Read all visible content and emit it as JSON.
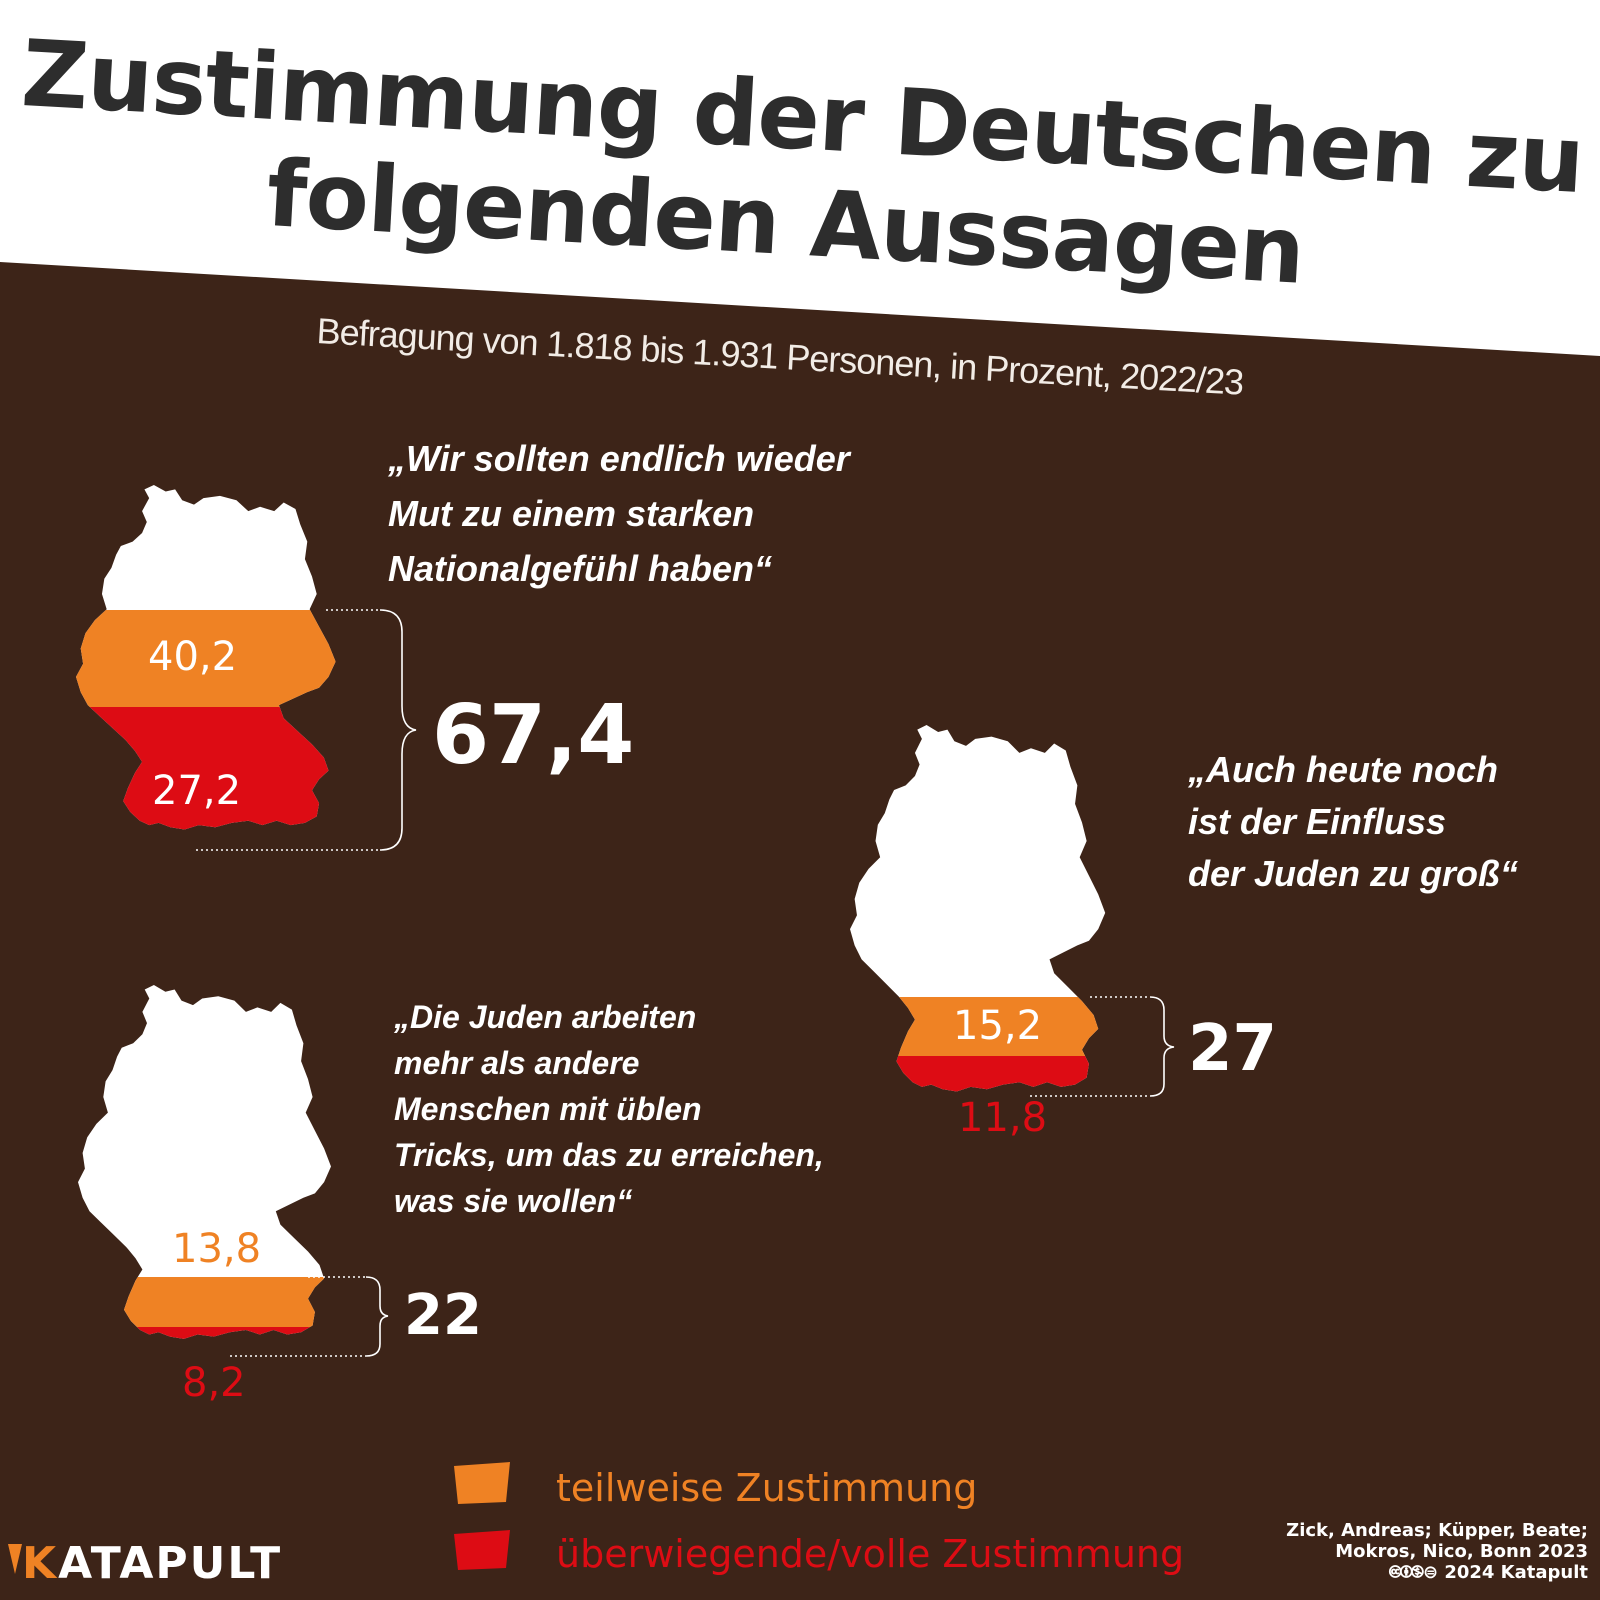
{
  "header": {
    "title_line1": "Zustimmung der Deutschen zu",
    "title_line2": "folgenden Aussagen",
    "subtitle": "Befragung von 1.818 bis 1.931 Personen, in Prozent, 2022/23"
  },
  "colors": {
    "background": "#3d2418",
    "partial": "#ef8224",
    "full": "#dd0c14",
    "map": "#ffffff",
    "title": "#2d2d2d"
  },
  "statements": [
    {
      "quote_lines": [
        "„Wir sollten endlich wieder",
        "Mut zu einem starken",
        "Nationalgefühl haben“"
      ],
      "partial_label": "40,2",
      "full_label": "27,2",
      "total_label": "67,4"
    },
    {
      "quote_lines": [
        "„Auch heute noch",
        "ist der Einfluss",
        "der Juden zu groß“"
      ],
      "partial_label": "15,2",
      "full_label": "11,8",
      "total_label": "27"
    },
    {
      "quote_lines": [
        "„Die Juden arbeiten",
        "mehr als andere",
        "Menschen mit üblen",
        "Tricks, um das zu erreichen,",
        "was sie wollen“"
      ],
      "partial_label": "13,8",
      "full_label": "8,2",
      "total_label": "22"
    }
  ],
  "legend": {
    "partial": "teilweise Zustimmung",
    "full": "überwiegende/volle Zustimmung"
  },
  "brand": {
    "k": "K",
    "rest": "ATAPULT"
  },
  "source": {
    "line1": "Zick, Andreas; Küpper, Beate;",
    "line2": "Mokros, Nico, Bonn 2023",
    "line3": "🅭🅯🄏⊜ 2024 Katapult"
  },
  "chart_data": {
    "type": "bar",
    "title": "Zustimmung der Deutschen zu folgenden Aussagen",
    "subtitle": "Befragung von 1.818 bis 1.931 Personen, in Prozent, 2022/23",
    "unit": "Prozent",
    "categories": [
      "„Wir sollten endlich wieder Mut zu einem starken Nationalgefühl haben“",
      "„Auch heute noch ist der Einfluss der Juden zu groß“",
      "„Die Juden arbeiten mehr als andere Menschen mit üblen Tricks, um das zu erreichen, was sie wollen“"
    ],
    "series": [
      {
        "name": "teilweise Zustimmung",
        "values": [
          40.2,
          15.2,
          13.8
        ]
      },
      {
        "name": "überwiegende/volle Zustimmung",
        "values": [
          27.2,
          11.8,
          8.2
        ]
      }
    ],
    "totals": [
      67.4,
      27,
      22
    ],
    "stacked": true,
    "legend_position": "bottom"
  }
}
